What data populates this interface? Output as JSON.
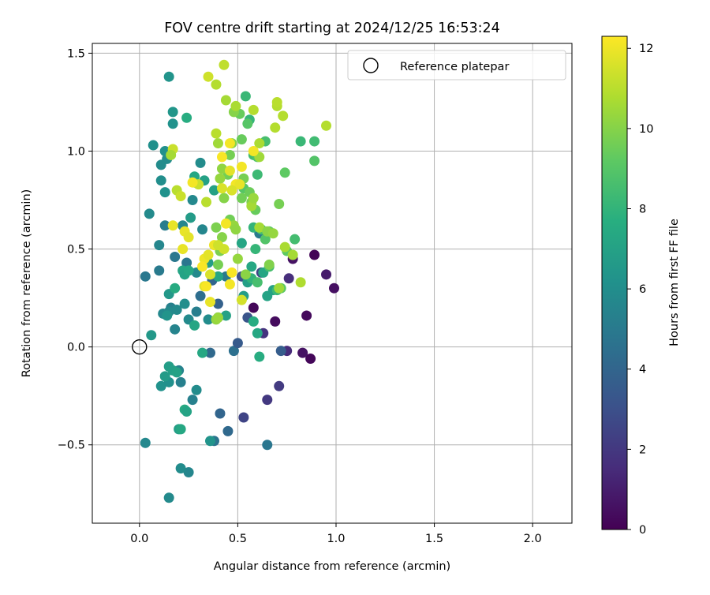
{
  "chart_data": {
    "type": "scatter",
    "title": "FOV centre drift starting at 2024/12/25 16:53:24",
    "xlabel": "Angular distance from reference (arcmin)",
    "ylabel": "Rotation from reference (arcmin)",
    "xlim": [
      -0.24,
      2.2
    ],
    "ylim": [
      -0.9,
      1.55
    ],
    "xticks": [
      0.0,
      0.5,
      1.0,
      1.5,
      2.0
    ],
    "xtick_labels": [
      "0.0",
      "0.5",
      "1.0",
      "1.5",
      "2.0"
    ],
    "yticks": [
      -0.5,
      0.0,
      0.5,
      1.0,
      1.5
    ],
    "ytick_labels": [
      "−0.5",
      "0.0",
      "0.5",
      "1.0",
      "1.5"
    ],
    "grid": true,
    "legend": {
      "placement": "upper right",
      "entries": [
        "Reference platepar"
      ]
    },
    "colorbar": {
      "label": "Hours from first FF file",
      "colormap": "viridis",
      "range": [
        0,
        12.3
      ],
      "ticks": [
        0,
        2,
        4,
        6,
        8,
        10,
        12
      ],
      "tick_labels": [
        "0",
        "2",
        "4",
        "6",
        "8",
        "10",
        "12"
      ]
    },
    "reference_point": {
      "x": 0.0,
      "y": 0.0,
      "label": "Reference platepar"
    },
    "columns": [
      "x",
      "y",
      "hours"
    ],
    "points": [
      [
        0.89,
        0.47,
        0.1
      ],
      [
        0.85,
        0.16,
        0.3
      ],
      [
        0.87,
        -0.06,
        0.2
      ],
      [
        0.99,
        0.3,
        0.5
      ],
      [
        0.95,
        0.37,
        0.9
      ],
      [
        0.69,
        0.13,
        0.4
      ],
      [
        0.58,
        0.2,
        0.2
      ],
      [
        0.83,
        -0.03,
        0.6
      ],
      [
        0.78,
        0.45,
        0.6
      ],
      [
        0.75,
        -0.02,
        1.5
      ],
      [
        0.71,
        -0.2,
        2.1
      ],
      [
        0.65,
        -0.27,
        2.0
      ],
      [
        0.53,
        -0.36,
        2.5
      ],
      [
        0.63,
        0.07,
        1.8
      ],
      [
        0.62,
        0.38,
        2.5
      ],
      [
        0.76,
        0.35,
        1.6
      ],
      [
        0.72,
        -0.02,
        3.6
      ],
      [
        0.55,
        0.15,
        3.2
      ],
      [
        0.52,
        0.36,
        3.0
      ],
      [
        0.41,
        -0.34,
        4.0
      ],
      [
        0.45,
        -0.43,
        4.2
      ],
      [
        0.48,
        -0.02,
        4.5
      ],
      [
        0.5,
        0.02,
        3.5
      ],
      [
        0.4,
        0.22,
        3.8
      ],
      [
        0.36,
        -0.03,
        4.2
      ],
      [
        0.37,
        0.34,
        4.0
      ],
      [
        0.31,
        0.26,
        4.4
      ],
      [
        0.38,
        -0.48,
        4.7
      ],
      [
        0.65,
        -0.5,
        4.8
      ],
      [
        0.61,
        0.58,
        5.0
      ],
      [
        0.44,
        0.36,
        5.0
      ],
      [
        0.29,
        0.18,
        5.2
      ],
      [
        0.24,
        0.43,
        4.8
      ],
      [
        0.4,
        0.15,
        5.0
      ],
      [
        0.21,
        -0.18,
        5.3
      ],
      [
        0.27,
        -0.27,
        5.3
      ],
      [
        0.25,
        -0.64,
        5.6
      ],
      [
        0.18,
        0.46,
        4.9
      ],
      [
        0.16,
        0.2,
        5.3
      ],
      [
        0.2,
        -0.12,
        5.4
      ],
      [
        0.12,
        0.17,
        5.7
      ],
      [
        0.1,
        0.39,
        5.0
      ],
      [
        0.13,
        0.62,
        5.1
      ],
      [
        0.1,
        0.52,
        5.6
      ],
      [
        0.15,
        0.18,
        5.8
      ],
      [
        0.18,
        0.09,
        5.5
      ],
      [
        0.19,
        0.19,
        5.8
      ],
      [
        0.25,
        0.14,
        5.8
      ],
      [
        0.32,
        0.6,
        5.6
      ],
      [
        0.31,
        0.94,
        5.9
      ],
      [
        0.27,
        0.75,
        5.7
      ],
      [
        0.22,
        0.62,
        5.6
      ],
      [
        0.29,
        0.38,
        5.8
      ],
      [
        0.35,
        0.14,
        5.9
      ],
      [
        0.23,
        0.22,
        6.0
      ],
      [
        0.03,
        0.36,
        4.9
      ],
      [
        0.05,
        0.68,
        5.8
      ],
      [
        0.11,
        0.93,
        5.9
      ],
      [
        0.14,
        0.96,
        5.9
      ],
      [
        0.13,
        1.0,
        6.1
      ],
      [
        0.07,
        1.03,
        6.1
      ],
      [
        0.11,
        0.85,
        6.0
      ],
      [
        0.13,
        0.79,
        6.2
      ],
      [
        0.17,
        1.14,
        6.2
      ],
      [
        0.17,
        1.2,
        6.4
      ],
      [
        0.15,
        1.38,
        6.3
      ],
      [
        0.14,
        0.16,
        6.3
      ],
      [
        0.11,
        -0.2,
        6.2
      ],
      [
        0.15,
        -0.18,
        6.1
      ],
      [
        0.15,
        -0.77,
        5.8
      ],
      [
        0.21,
        -0.62,
        5.9
      ],
      [
        0.29,
        -0.22,
        5.9
      ],
      [
        0.03,
        -0.49,
        5.7
      ],
      [
        0.13,
        -0.15,
        6.7
      ],
      [
        0.15,
        -0.1,
        6.8
      ],
      [
        0.17,
        -0.12,
        6.9
      ],
      [
        0.19,
        -0.13,
        7.0
      ],
      [
        0.2,
        -0.42,
        6.8
      ],
      [
        0.21,
        -0.42,
        7.3
      ],
      [
        0.23,
        -0.32,
        7.4
      ],
      [
        0.24,
        -0.33,
        7.1
      ],
      [
        0.32,
        -0.03,
        7.3
      ],
      [
        0.36,
        -0.48,
        6.3
      ],
      [
        0.06,
        0.06,
        6.5
      ],
      [
        0.15,
        0.27,
        6.5
      ],
      [
        0.18,
        0.3,
        7.5
      ],
      [
        0.22,
        0.39,
        7.2
      ],
      [
        0.23,
        0.37,
        7.1
      ],
      [
        0.25,
        0.39,
        7.3
      ],
      [
        0.28,
        0.11,
        7.2
      ],
      [
        0.35,
        0.43,
        6.8
      ],
      [
        0.26,
        0.66,
        6.7
      ],
      [
        0.33,
        0.85,
        7.0
      ],
      [
        0.28,
        0.84,
        7.6
      ],
      [
        0.28,
        0.87,
        7.3
      ],
      [
        0.38,
        0.8,
        7.0
      ],
      [
        0.4,
        0.36,
        7.2
      ],
      [
        0.44,
        0.16,
        7.0
      ],
      [
        0.52,
        0.53,
        7.2
      ],
      [
        0.53,
        0.26,
        6.8
      ],
      [
        0.55,
        0.33,
        6.9
      ],
      [
        0.57,
        0.41,
        7.3
      ],
      [
        0.58,
        0.13,
        7.6
      ],
      [
        0.6,
        0.07,
        7.3
      ],
      [
        0.61,
        -0.05,
        7.6
      ],
      [
        0.63,
        0.38,
        7.2
      ],
      [
        0.65,
        0.26,
        7.1
      ],
      [
        0.68,
        0.29,
        7.0
      ],
      [
        0.24,
        1.17,
        7.6
      ],
      [
        0.54,
        1.28,
        8.2
      ],
      [
        0.56,
        1.16,
        8.1
      ],
      [
        0.58,
        0.98,
        8.4
      ],
      [
        0.6,
        0.88,
        8.3
      ],
      [
        0.58,
        0.61,
        8.0
      ],
      [
        0.59,
        0.5,
        8.1
      ],
      [
        0.57,
        0.35,
        8.0
      ],
      [
        0.6,
        0.33,
        8.6
      ],
      [
        0.62,
        0.6,
        8.5
      ],
      [
        0.64,
        0.55,
        8.9
      ],
      [
        0.66,
        0.41,
        8.6
      ],
      [
        0.7,
        0.29,
        8.2
      ],
      [
        0.72,
        0.3,
        9.2
      ],
      [
        0.75,
        0.49,
        9.2
      ],
      [
        0.79,
        0.55,
        8.5
      ],
      [
        0.82,
        1.05,
        8.2
      ],
      [
        0.89,
        1.05,
        8.4
      ],
      [
        0.89,
        0.95,
        8.9
      ],
      [
        0.74,
        0.89,
        9.2
      ],
      [
        0.71,
        0.73,
        9.7
      ],
      [
        0.66,
        0.59,
        9.1
      ],
      [
        0.64,
        1.05,
        8.6
      ],
      [
        0.6,
        0.97,
        8.8
      ],
      [
        0.55,
        1.14,
        9.0
      ],
      [
        0.52,
        1.06,
        9.4
      ],
      [
        0.53,
        0.81,
        9.0
      ],
      [
        0.59,
        0.7,
        9.4
      ],
      [
        0.57,
        0.74,
        9.8
      ],
      [
        0.56,
        0.79,
        9.5
      ],
      [
        0.53,
        0.86,
        9.7
      ],
      [
        0.52,
        0.76,
        9.6
      ],
      [
        0.51,
        1.19,
        9.4
      ],
      [
        0.48,
        1.2,
        10.0
      ],
      [
        0.47,
        1.04,
        10.0
      ],
      [
        0.46,
        0.98,
        9.7
      ],
      [
        0.45,
        0.88,
        9.6
      ],
      [
        0.46,
        0.65,
        9.6
      ],
      [
        0.43,
        0.76,
        10.0
      ],
      [
        0.42,
        0.56,
        10.0
      ],
      [
        0.41,
        0.49,
        9.8
      ],
      [
        0.39,
        0.61,
        9.8
      ],
      [
        0.4,
        0.42,
        9.7
      ],
      [
        0.39,
        0.14,
        10.3
      ],
      [
        0.4,
        0.15,
        10.4
      ],
      [
        0.41,
        0.86,
        10.3
      ],
      [
        0.42,
        0.91,
        10.2
      ],
      [
        0.4,
        1.04,
        10.5
      ],
      [
        0.48,
        0.62,
        10.3
      ],
      [
        0.49,
        0.6,
        10.2
      ],
      [
        0.5,
        0.45,
        10.3
      ],
      [
        0.54,
        0.37,
        10.1
      ],
      [
        0.57,
        0.72,
        10.6
      ],
      [
        0.58,
        0.76,
        10.4
      ],
      [
        0.61,
        0.61,
        10.6
      ],
      [
        0.61,
        0.97,
        10.5
      ],
      [
        0.61,
        1.04,
        10.7
      ],
      [
        0.65,
        0.59,
        10.1
      ],
      [
        0.66,
        0.42,
        9.9
      ],
      [
        0.68,
        0.58,
        10.3
      ],
      [
        0.71,
        0.3,
        10.5
      ],
      [
        0.74,
        0.51,
        10.7
      ],
      [
        0.78,
        0.47,
        10.6
      ],
      [
        0.82,
        0.33,
        10.8
      ],
      [
        0.95,
        1.13,
        10.9
      ],
      [
        0.69,
        1.12,
        10.9
      ],
      [
        0.7,
        1.23,
        10.9
      ],
      [
        0.7,
        1.25,
        11.0
      ],
      [
        0.73,
        1.18,
        10.9
      ],
      [
        0.58,
        1.21,
        10.9
      ],
      [
        0.49,
        1.23,
        10.7
      ],
      [
        0.44,
        1.26,
        10.6
      ],
      [
        0.39,
        1.09,
        11.0
      ],
      [
        0.43,
        1.44,
        11.1
      ],
      [
        0.39,
        1.34,
        10.9
      ],
      [
        0.35,
        1.38,
        11.4
      ],
      [
        0.17,
        1.01,
        11.3
      ],
      [
        0.16,
        0.98,
        10.6
      ],
      [
        0.19,
        0.8,
        11.0
      ],
      [
        0.21,
        0.77,
        11.3
      ],
      [
        0.3,
        0.83,
        11.3
      ],
      [
        0.34,
        0.74,
        11.0
      ],
      [
        0.36,
        0.37,
        11.6
      ],
      [
        0.33,
        0.31,
        11.8
      ],
      [
        0.36,
        0.23,
        11.9
      ],
      [
        0.22,
        0.5,
        11.9
      ],
      [
        0.17,
        0.62,
        11.9
      ],
      [
        0.23,
        0.59,
        11.9
      ],
      [
        0.25,
        0.56,
        11.8
      ],
      [
        0.33,
        0.45,
        12.0
      ],
      [
        0.35,
        0.47,
        11.8
      ],
      [
        0.38,
        0.52,
        12.0
      ],
      [
        0.4,
        0.52,
        11.4
      ],
      [
        0.32,
        0.41,
        12.2
      ],
      [
        0.34,
        0.31,
        12.2
      ],
      [
        0.42,
        0.81,
        11.6
      ],
      [
        0.44,
        0.63,
        12.1
      ],
      [
        0.46,
        0.32,
        12.1
      ],
      [
        0.47,
        0.38,
        12.2
      ],
      [
        0.49,
        0.83,
        12.1
      ],
      [
        0.46,
        0.9,
        11.8
      ],
      [
        0.46,
        1.04,
        12.1
      ],
      [
        0.52,
        0.92,
        12.1
      ],
      [
        0.51,
        0.83,
        11.9
      ],
      [
        0.52,
        0.24,
        11.5
      ],
      [
        0.58,
        1.0,
        12.1
      ],
      [
        0.27,
        0.84,
        12.1
      ],
      [
        0.42,
        0.97,
        12.2
      ],
      [
        0.47,
        0.8,
        11.6
      ],
      [
        0.43,
        0.5,
        11.4
      ]
    ]
  }
}
